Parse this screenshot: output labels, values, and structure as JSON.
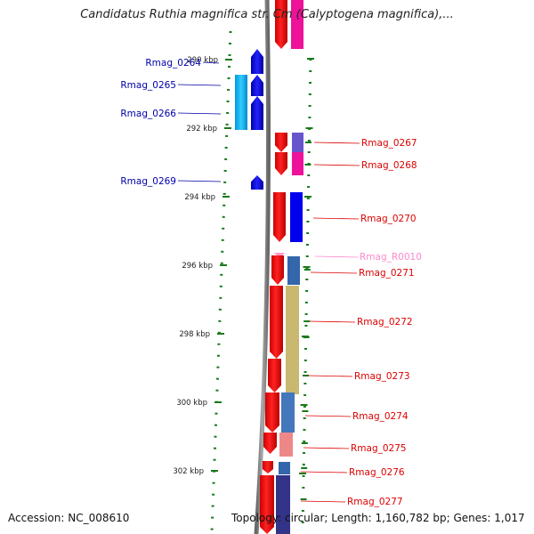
{
  "title": "Candidatus Ruthia magnifica str. Cm (Calyptogena magnifica),...",
  "footer": {
    "accession": "Accession: NC_008610",
    "topology": "Topology: circular; Length: 1,160,782 bp; Genes: 1,017"
  },
  "colors": {
    "backbone": "#8c8c8c",
    "tick": "#1a7a1a",
    "left_label": "#0000aa",
    "right_label": "#dd0000",
    "rna_label": "#ff88cc"
  },
  "scale_ticks": [
    {
      "label": "290 kbp",
      "kbp": 290
    },
    {
      "label": "292 kbp",
      "kbp": 292
    },
    {
      "label": "294 kbp",
      "kbp": 294
    },
    {
      "label": "296 kbp",
      "kbp": 296
    },
    {
      "label": "298 kbp",
      "kbp": 298
    },
    {
      "label": "300 kbp",
      "kbp": 300
    },
    {
      "label": "302 kbp",
      "kbp": 302
    }
  ],
  "left_genes": [
    {
      "id": "Rmag_0264",
      "color": "#0000ee"
    },
    {
      "id": "Rmag_0265",
      "color": "#0000ee"
    },
    {
      "id": "Rmag_0266",
      "color": "#0000ee"
    },
    {
      "id": "Rmag_0269",
      "color": "#0000ee"
    }
  ],
  "right_genes": [
    {
      "id": "Rmag_0267",
      "color": "#ee0000",
      "cog_color": "#6655cc"
    },
    {
      "id": "Rmag_0268",
      "color": "#ee0000",
      "cog_color": "#ee1199"
    },
    {
      "id": "Rmag_0270",
      "color": "#ee0000",
      "cog_color": "#0000ee"
    },
    {
      "id": "Rmag_R0010",
      "color": "#ff99cc",
      "cog_color": ""
    },
    {
      "id": "Rmag_0271",
      "color": "#ee0000",
      "cog_color": "#3366aa"
    },
    {
      "id": "Rmag_0272",
      "color": "#ee0000",
      "cog_color": "#c8b870"
    },
    {
      "id": "Rmag_0273",
      "color": "#ee0000",
      "cog_color": "#c8b870"
    },
    {
      "id": "Rmag_0274",
      "color": "#ee0000",
      "cog_color": "#4477bb"
    },
    {
      "id": "Rmag_0275",
      "color": "#ee0000",
      "cog_color": "#ee8888"
    },
    {
      "id": "Rmag_0276",
      "color": "#ee0000",
      "cog_color": "#3366aa"
    },
    {
      "id": "Rmag_0277",
      "color": "#ee0000",
      "cog_color": "#333388"
    }
  ]
}
